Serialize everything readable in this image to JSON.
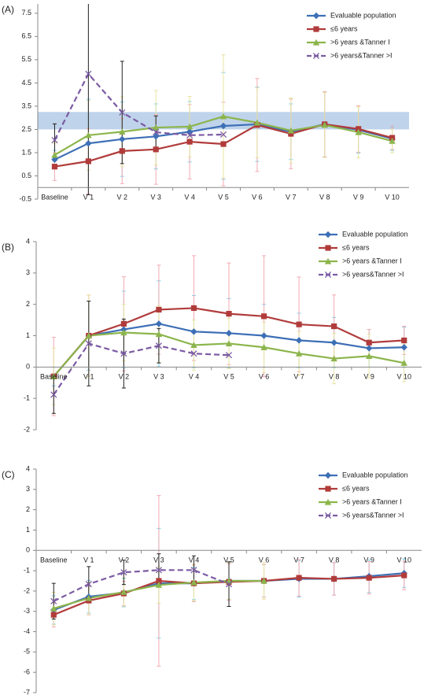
{
  "chart_data": [
    {
      "type": "line",
      "title": "(A)",
      "categories": [
        "Baseline",
        "V 1",
        "V 2",
        "V 3",
        "V 4",
        "V 5",
        "V 6",
        "V 7",
        "V 8",
        "V 9",
        "V 10"
      ],
      "ylim": [
        -0.5,
        7.9
      ],
      "yticks": [
        -0.5,
        0.5,
        1.5,
        2.5,
        3.5,
        4.5,
        5.5,
        6.5,
        7.5
      ],
      "reference_band": {
        "range": [
          2.5,
          3.25
        ],
        "color": "#b4cbe8"
      },
      "series": [
        {
          "name": "Evaluable population",
          "color": "#3d6fb6",
          "marker": "diamond",
          "error_color": "#7fd0ec",
          "values": [
            1.2,
            1.9,
            2.08,
            2.2,
            2.4,
            2.65,
            2.72,
            2.4,
            2.72,
            2.48,
            2.1
          ],
          "errors": [
            0.4,
            1.9,
            1.6,
            1.4,
            1.3,
            2.3,
            1.6,
            1.2,
            1.4,
            1.0,
            0.5
          ]
        },
        {
          "name": "≤6 years",
          "color": "#b13b3b",
          "marker": "square",
          "error_color": "#f3aab2",
          "values": [
            0.9,
            1.13,
            1.57,
            1.64,
            1.97,
            1.87,
            2.69,
            2.31,
            2.72,
            2.52,
            2.14
          ],
          "errors": [
            0.6,
            1.4,
            1.4,
            1.5,
            1.6,
            1.8,
            2.0,
            1.5,
            1.4,
            1.0,
            0.5
          ]
        },
        {
          "name": ">6 years &Tanner I",
          "color": "#8cb54c",
          "marker": "triangle",
          "error_color": "#e8e3a2",
          "values": [
            1.4,
            2.25,
            2.4,
            2.58,
            2.62,
            3.06,
            2.79,
            2.45,
            2.69,
            2.38,
            2.0
          ],
          "errors": [
            0.5,
            1.5,
            1.5,
            1.6,
            1.3,
            2.65,
            1.5,
            1.4,
            1.4,
            1.1,
            0.5
          ]
        },
        {
          "name": ">6 years&Tanner >I",
          "color": "#7b5ba3",
          "marker": "x",
          "dashed": true,
          "error_color": "#222222",
          "values": [
            2.04,
            4.89,
            3.23,
            2.38,
            2.25,
            2.28,
            null,
            null,
            null,
            null,
            null
          ],
          "errors": [
            0.7,
            5.2,
            2.2,
            0.7,
            null,
            null,
            null,
            null,
            null,
            null,
            null
          ]
        }
      ]
    },
    {
      "type": "line",
      "title": "(B)",
      "categories": [
        "Baseline",
        "V 1",
        "V 2",
        "V 3",
        "V 4",
        "V 5",
        "V 6",
        "V 7",
        "V 8",
        "V 9",
        "V 10"
      ],
      "ylim": [
        -2,
        4
      ],
      "yticks": [
        -2,
        -1,
        0,
        1,
        2,
        3,
        4
      ],
      "series": [
        {
          "name": "Evaluable population",
          "color": "#3d6fb6",
          "marker": "diamond",
          "error_color": "#7fd0ec",
          "values": [
            -0.3,
            1.0,
            1.2,
            1.38,
            1.13,
            1.08,
            1.0,
            0.85,
            0.78,
            0.6,
            0.63
          ],
          "errors": [
            0.3,
            1.1,
            1.22,
            1.37,
            1.15,
            1.1,
            1.0,
            0.87,
            0.8,
            0.6,
            0.64
          ]
        },
        {
          "name": "≤6 years",
          "color": "#b13b3b",
          "marker": "square",
          "error_color": "#f3aab2",
          "values": [
            -0.3,
            1.0,
            1.38,
            1.83,
            1.88,
            1.7,
            1.62,
            1.36,
            1.3,
            0.78,
            0.85
          ],
          "errors": [
            1.25,
            1.3,
            1.5,
            1.42,
            1.67,
            1.62,
            1.93,
            1.51,
            1.0,
            0.42,
            0.45
          ]
        },
        {
          "name": ">6 years &Tanner I",
          "color": "#8cb54c",
          "marker": "triangle",
          "error_color": "#e8e3a2",
          "values": [
            -0.3,
            1.0,
            1.1,
            1.05,
            0.7,
            0.75,
            0.63,
            0.43,
            0.27,
            0.35,
            0.13
          ],
          "errors": [
            0.9,
            1.3,
            0.9,
            0.9,
            0.8,
            0.8,
            0.8,
            0.7,
            0.8,
            0.7,
            0.6
          ]
        },
        {
          "name": ">6 years&Tanner >I",
          "color": "#7b5ba3",
          "marker": "x",
          "dashed": true,
          "error_color": "#222222",
          "values": [
            -0.88,
            0.75,
            0.43,
            0.68,
            0.43,
            0.38,
            null,
            null,
            null,
            null,
            null
          ],
          "errors": [
            0.6,
            1.35,
            1.1,
            0.55,
            null,
            null,
            null,
            null,
            null,
            null,
            null
          ]
        }
      ]
    },
    {
      "type": "line",
      "title": "(C)",
      "categories": [
        "Baseline",
        "V 1",
        "V 2",
        "V 3",
        "V 4",
        "V 5",
        "V 6",
        "V 7",
        "V 8",
        "V 9",
        "V 10"
      ],
      "ylim": [
        -7,
        4
      ],
      "yticks": [
        -7,
        -6,
        -5,
        -4,
        -3,
        -2,
        -1,
        0,
        1,
        2,
        3,
        4
      ],
      "series": [
        {
          "name": "Evaluable population",
          "color": "#3d6fb6",
          "marker": "diamond",
          "error_color": "#7fd0ec",
          "values": [
            -2.93,
            -2.28,
            -2.08,
            -1.62,
            -1.62,
            -1.5,
            -1.5,
            -1.4,
            -1.4,
            -1.27,
            -1.12
          ],
          "errors": [
            0.7,
            0.8,
            0.7,
            2.7,
            0.8,
            0.9,
            0.8,
            0.9,
            0.8,
            0.8,
            0.7
          ]
        },
        {
          "name": "≤6 years",
          "color": "#b13b3b",
          "marker": "square",
          "error_color": "#f3aab2",
          "values": [
            -3.17,
            -2.47,
            -2.12,
            -1.5,
            -1.62,
            -1.55,
            -1.5,
            -1.35,
            -1.4,
            -1.35,
            -1.23
          ],
          "errors": [
            0.6,
            0.7,
            0.6,
            4.2,
            0.9,
            0.9,
            0.8,
            0.9,
            0.8,
            0.8,
            0.7
          ]
        },
        {
          "name": ">6 years &Tanner I",
          "color": "#8cb54c",
          "marker": "triangle",
          "error_color": "#e8e3a2",
          "values": [
            -2.86,
            -2.35,
            -2.05,
            -1.7,
            -1.58,
            -1.5,
            -1.5,
            null,
            null,
            null,
            null
          ],
          "errors": [
            0.8,
            0.8,
            0.7,
            0.9,
            0.9,
            0.9,
            0.9,
            null,
            null,
            null,
            null
          ]
        },
        {
          "name": ">6 years&Tanner >I",
          "color": "#7b5ba3",
          "marker": "x",
          "dashed": true,
          "error_color": "#222222",
          "values": [
            -2.5,
            -1.66,
            -1.08,
            -0.97,
            -0.97,
            -1.66,
            null,
            null,
            null,
            null,
            null
          ],
          "errors": [
            0.88,
            0.86,
            0.6,
            0.8,
            0.7,
            1.1,
            null,
            null,
            null,
            null,
            null
          ]
        }
      ]
    }
  ]
}
